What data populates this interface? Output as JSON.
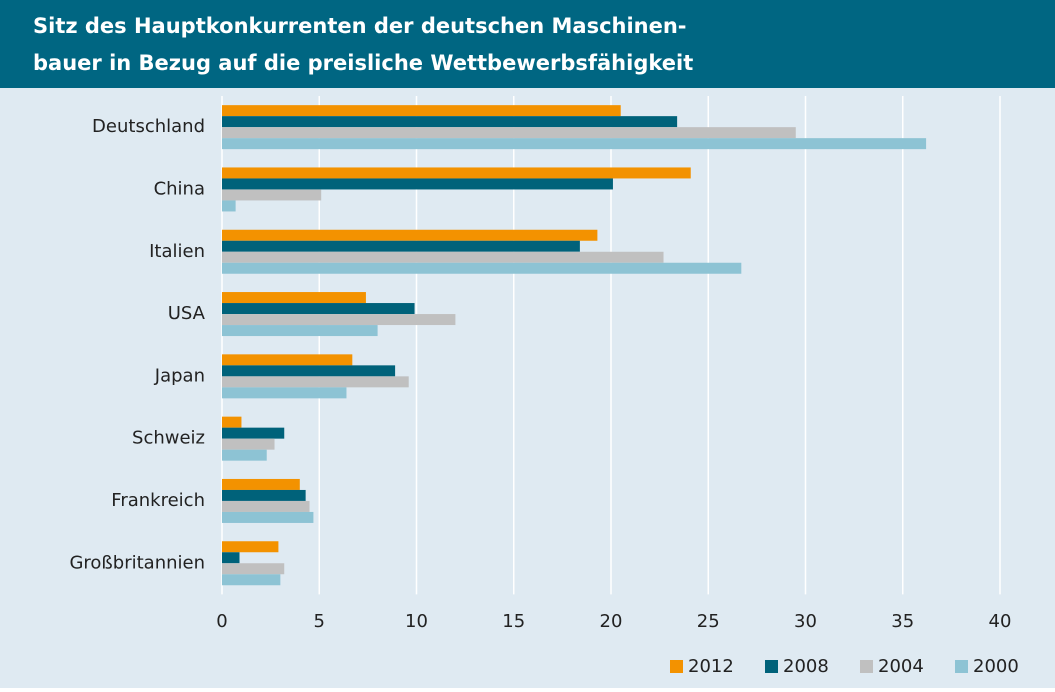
{
  "chart_data": {
    "type": "barh",
    "title": [
      "Sitz des Hauptkonkurrenten der deutschen Maschinen-",
      "bauer in Bezug auf die preisliche Wettbewerbsfähigkeit"
    ],
    "categories": [
      "Deutschland",
      "China",
      "Italien",
      "USA",
      "Japan",
      "Schweiz",
      "Frankreich",
      "Großbritannien"
    ],
    "series": [
      {
        "name": "2012",
        "color": "#f39200",
        "values": [
          20.5,
          24.1,
          19.3,
          7.4,
          6.7,
          1.0,
          4.0,
          2.9
        ]
      },
      {
        "name": "2008",
        "color": "#00627a",
        "values": [
          23.4,
          20.1,
          18.4,
          9.9,
          8.9,
          3.2,
          4.3,
          0.9
        ]
      },
      {
        "name": "2004",
        "color": "#c0c0c0",
        "values": [
          29.5,
          5.1,
          22.7,
          12.0,
          9.6,
          2.7,
          4.5,
          3.2
        ]
      },
      {
        "name": "2000",
        "color": "#8dc3d4",
        "values": [
          36.2,
          0.7,
          26.7,
          8.0,
          6.4,
          2.3,
          4.7,
          3.0
        ]
      }
    ],
    "xlim": [
      0,
      40
    ],
    "xticks": [
      0,
      5,
      10,
      15,
      20,
      25,
      30,
      35,
      40
    ],
    "grid": true,
    "legend": "bottom-right"
  }
}
